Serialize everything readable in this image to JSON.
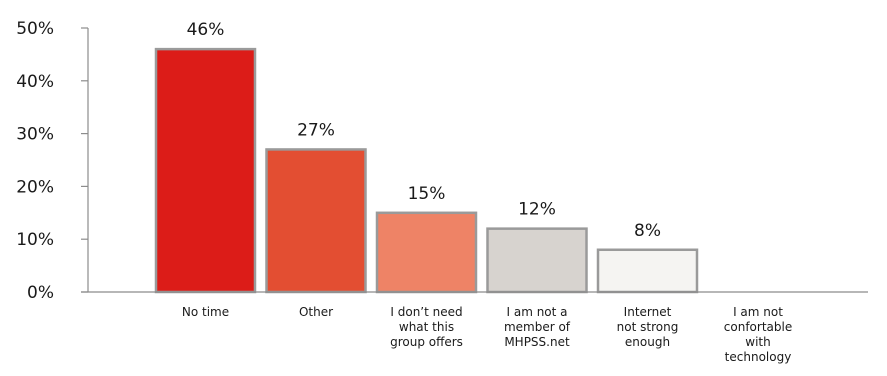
{
  "chart_data": {
    "type": "bar",
    "categories": [
      [
        "No time"
      ],
      [
        "Other"
      ],
      [
        "I don’t need",
        "what this",
        "group offers"
      ],
      [
        "I am not a",
        "member of",
        "MHPSS.net"
      ],
      [
        "Internet",
        "not strong",
        "enough"
      ],
      [
        "I am not",
        "confortable",
        "with",
        "technology"
      ]
    ],
    "values": [
      46,
      27,
      15,
      12,
      8,
      0
    ],
    "data_labels": [
      "46%",
      "27%",
      "15%",
      "12%",
      "8%",
      ""
    ],
    "colors": [
      "#dc1c18",
      "#e34e32",
      "#ee8366",
      "#d7d3cf",
      "#f5f4f2",
      "#ffffff"
    ],
    "yticks": [
      0,
      10,
      20,
      30,
      40,
      50
    ],
    "ytick_labels": [
      "0%",
      "10%",
      "20%",
      "30%",
      "40%",
      "50%"
    ],
    "ylim": [
      0,
      50
    ],
    "title": "",
    "xlabel": "",
    "ylabel": "",
    "grid": false,
    "legend": "none"
  }
}
